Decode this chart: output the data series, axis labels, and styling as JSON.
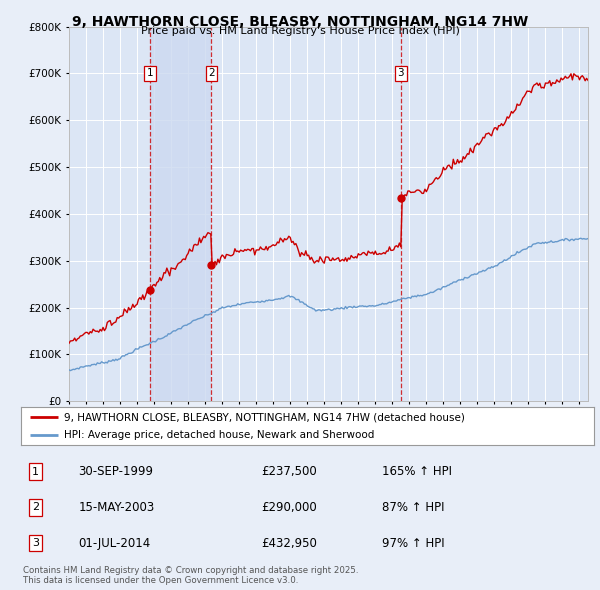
{
  "title": "9, HAWTHORN CLOSE, BLEASBY, NOTTINGHAM, NG14 7HW",
  "subtitle": "Price paid vs. HM Land Registry's House Price Index (HPI)",
  "red_label": "9, HAWTHORN CLOSE, BLEASBY, NOTTINGHAM, NG14 7HW (detached house)",
  "blue_label": "HPI: Average price, detached house, Newark and Sherwood",
  "sales": [
    {
      "num": 1,
      "date": "30-SEP-1999",
      "price": 237500,
      "hpi_pct": "165% ↑ HPI",
      "year": 1999.75
    },
    {
      "num": 2,
      "date": "15-MAY-2003",
      "price": 290000,
      "hpi_pct": "87% ↑ HPI",
      "year": 2003.37
    },
    {
      "num": 3,
      "date": "01-JUL-2014",
      "price": 432950,
      "hpi_pct": "97% ↑ HPI",
      "year": 2014.5
    }
  ],
  "footer": "Contains HM Land Registry data © Crown copyright and database right 2025.\nThis data is licensed under the Open Government Licence v3.0.",
  "ylim": [
    0,
    800000
  ],
  "xlim_start": 1995.0,
  "xlim_end": 2025.5,
  "background_color": "#e8eef8",
  "plot_bg_color": "#dce6f5",
  "grid_color": "#ffffff",
  "red_color": "#cc0000",
  "blue_color": "#6699cc",
  "highlight_color": "#ccd9f0"
}
